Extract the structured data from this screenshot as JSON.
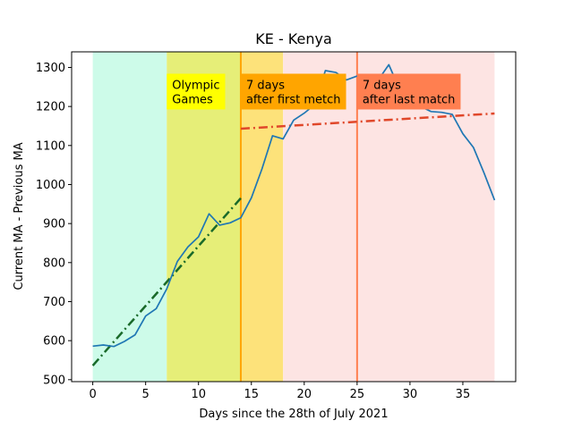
{
  "chart_data": {
    "type": "line",
    "title": "KE - Kenya",
    "xlabel": "Days since the 28th of July 2021",
    "ylabel": "Current MA - Previous MA",
    "xlim": [
      -2,
      40
    ],
    "ylim": [
      495,
      1340
    ],
    "x_ticks": [
      0,
      5,
      10,
      15,
      20,
      25,
      30,
      35
    ],
    "y_ticks": [
      500,
      600,
      700,
      800,
      900,
      1000,
      1100,
      1200,
      1300
    ],
    "grid": false,
    "series": [
      {
        "color": "#1f77b4",
        "style": "solid",
        "x": [
          0,
          1,
          2,
          3,
          4,
          5,
          6,
          7,
          8,
          9,
          10,
          11,
          12,
          13,
          14,
          15,
          16,
          17,
          18,
          19,
          20,
          21,
          22,
          23,
          24,
          25,
          26,
          27,
          28,
          29,
          30,
          31,
          32,
          33,
          34,
          35,
          36,
          37,
          38
        ],
        "y": [
          586,
          589,
          585,
          598,
          615,
          663,
          682,
          733,
          803,
          840,
          866,
          925,
          896,
          902,
          915,
          966,
          1040,
          1125,
          1117,
          1165,
          1183,
          1205,
          1292,
          1287,
          1268,
          1278,
          1270,
          1268,
          1307,
          1245,
          1235,
          1200,
          1187,
          1185,
          1180,
          1130,
          1095,
          1030,
          960
        ]
      }
    ],
    "trend_lines": [
      {
        "color": "#1a6a2a",
        "style": "dashdot",
        "x": [
          0,
          14
        ],
        "y": [
          536,
          965
        ]
      },
      {
        "color": "#e0472a",
        "style": "dashdot",
        "x": [
          14,
          38
        ],
        "y": [
          1143,
          1182
        ]
      }
    ],
    "shaded_regions": [
      {
        "x": [
          0,
          7
        ],
        "color": "#cdfbe9"
      },
      {
        "x": [
          7,
          14
        ],
        "color": "#e6ee78"
      },
      {
        "x": [
          14,
          18
        ],
        "color": "#fde27a"
      },
      {
        "x": [
          18,
          38
        ],
        "color": "#fde4e3"
      }
    ],
    "vertical_lines": [
      {
        "x": 14,
        "color": "#ffa500"
      },
      {
        "x": 25,
        "color": "#ff7f50"
      }
    ],
    "annotations": [
      {
        "lines": [
          "Olympic",
          "Games"
        ],
        "x": 7,
        "y": 1245,
        "bg": "#ffff00"
      },
      {
        "lines": [
          "7 days",
          "after first metch"
        ],
        "x": 14,
        "y": 1245,
        "bg": "#ffa500"
      },
      {
        "lines": [
          "7 days",
          "after last match"
        ],
        "x": 25,
        "y": 1245,
        "bg": "#ff7f50"
      }
    ]
  }
}
